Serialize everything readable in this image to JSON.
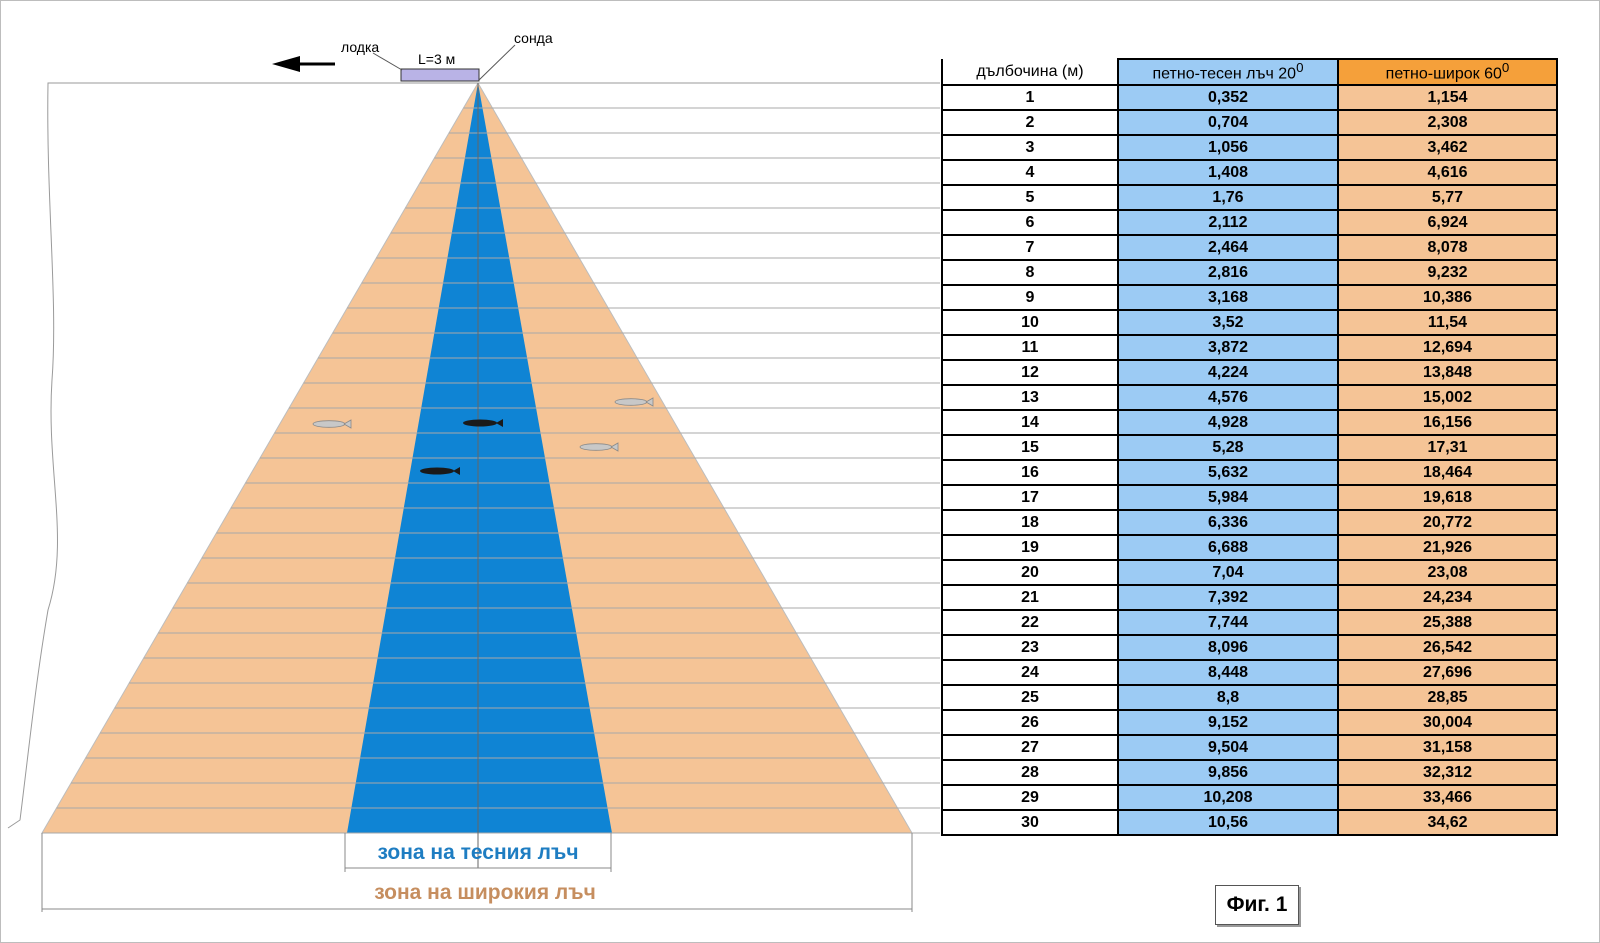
{
  "labels": {
    "boat": "лодка",
    "boat_length": "L=3 м",
    "probe": "сонда",
    "narrow_zone": "зона на тесния лъч",
    "wide_zone": "зона на широкия лъч",
    "figure": "Фиг. 1"
  },
  "table": {
    "headers": {
      "depth": "дълбочина (м)",
      "narrow": "петно-тесен лъч 20",
      "wide": "петно-широк 60",
      "degree_mark": "0"
    },
    "rows": [
      {
        "depth": "1",
        "narrow": "0,352",
        "wide": "1,154"
      },
      {
        "depth": "2",
        "narrow": "0,704",
        "wide": "2,308"
      },
      {
        "depth": "3",
        "narrow": "1,056",
        "wide": "3,462"
      },
      {
        "depth": "4",
        "narrow": "1,408",
        "wide": "4,616"
      },
      {
        "depth": "5",
        "narrow": "1,76",
        "wide": "5,77"
      },
      {
        "depth": "6",
        "narrow": "2,112",
        "wide": "6,924"
      },
      {
        "depth": "7",
        "narrow": "2,464",
        "wide": "8,078"
      },
      {
        "depth": "8",
        "narrow": "2,816",
        "wide": "9,232"
      },
      {
        "depth": "9",
        "narrow": "3,168",
        "wide": "10,386"
      },
      {
        "depth": "10",
        "narrow": "3,52",
        "wide": "11,54"
      },
      {
        "depth": "11",
        "narrow": "3,872",
        "wide": "12,694"
      },
      {
        "depth": "12",
        "narrow": "4,224",
        "wide": "13,848"
      },
      {
        "depth": "13",
        "narrow": "4,576",
        "wide": "15,002"
      },
      {
        "depth": "14",
        "narrow": "4,928",
        "wide": "16,156"
      },
      {
        "depth": "15",
        "narrow": "5,28",
        "wide": "17,31"
      },
      {
        "depth": "16",
        "narrow": "5,632",
        "wide": "18,464"
      },
      {
        "depth": "17",
        "narrow": "5,984",
        "wide": "19,618"
      },
      {
        "depth": "18",
        "narrow": "6,336",
        "wide": "20,772"
      },
      {
        "depth": "19",
        "narrow": "6,688",
        "wide": "21,926"
      },
      {
        "depth": "20",
        "narrow": "7,04",
        "wide": "23,08"
      },
      {
        "depth": "21",
        "narrow": "7,392",
        "wide": "24,234"
      },
      {
        "depth": "22",
        "narrow": "7,744",
        "wide": "25,388"
      },
      {
        "depth": "23",
        "narrow": "8,096",
        "wide": "26,542"
      },
      {
        "depth": "24",
        "narrow": "8,448",
        "wide": "27,696"
      },
      {
        "depth": "25",
        "narrow": "8,8",
        "wide": "28,85"
      },
      {
        "depth": "26",
        "narrow": "9,152",
        "wide": "30,004"
      },
      {
        "depth": "27",
        "narrow": "9,504",
        "wide": "31,158"
      },
      {
        "depth": "28",
        "narrow": "9,856",
        "wide": "32,312"
      },
      {
        "depth": "29",
        "narrow": "10,208",
        "wide": "33,466"
      },
      {
        "depth": "30",
        "narrow": "10,56",
        "wide": "34,62"
      }
    ]
  },
  "colors": {
    "wide_beam": "#f5c496",
    "narrow_beam": "#0f84d4",
    "narrow_header": "#9ccbf4",
    "wide_header": "#f5a03a",
    "boat": "#b9b3e6",
    "fish_dark": "#1a1a1a",
    "fish_light": "#c8c8c8"
  }
}
